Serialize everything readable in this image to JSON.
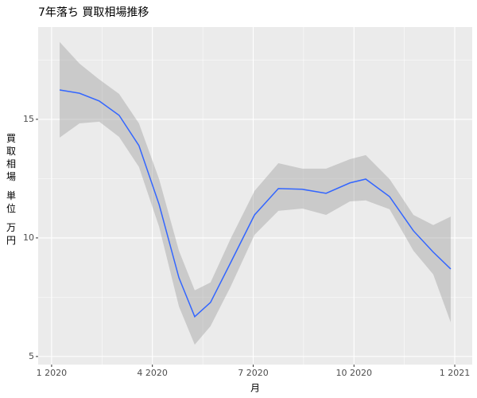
{
  "chart_data": {
    "type": "line",
    "title": "7年落ち 買取相場推移",
    "x_label": "月",
    "y_label": "買取相場 単位 万円",
    "x": [
      1.24,
      1.83,
      2.42,
      3.01,
      3.6,
      4.2,
      4.79,
      5.26,
      5.73,
      6.33,
      7.04,
      7.75,
      8.46,
      9.17,
      9.88,
      10.35,
      11.06,
      11.77,
      12.36,
      12.88
    ],
    "series": [
      {
        "color": "#3366ff",
        "values": [
          16.24,
          16.1,
          15.77,
          15.17,
          13.89,
          11.41,
          8.32,
          6.68,
          7.28,
          8.96,
          10.97,
          12.08,
          12.05,
          11.88,
          12.32,
          12.48,
          11.74,
          10.3,
          9.4,
          8.69
        ]
      }
    ],
    "ribbon": {
      "color": "#999999",
      "lower": [
        14.23,
        14.83,
        14.9,
        14.26,
        12.99,
        10.47,
        7.11,
        5.5,
        6.28,
        7.95,
        10.13,
        11.14,
        11.24,
        10.97,
        11.54,
        11.58,
        11.21,
        9.46,
        8.46,
        6.44
      ],
      "upper": [
        18.26,
        17.35,
        16.68,
        16.07,
        14.83,
        12.48,
        9.46,
        7.79,
        8.12,
        9.97,
        11.98,
        13.15,
        12.92,
        12.92,
        13.32,
        13.49,
        12.48,
        10.97,
        10.54,
        10.9
      ]
    },
    "xlim": [
      0.6,
      13.52
    ],
    "ylim": [
      4.66,
      18.89
    ],
    "xticks": [
      {
        "value": 1,
        "label": "1 2020"
      },
      {
        "value": 4,
        "label": "4 2020"
      },
      {
        "value": 7,
        "label": "7 2020"
      },
      {
        "value": 10,
        "label": "10 2020"
      },
      {
        "value": 13,
        "label": "1 2021"
      }
    ],
    "yticks": [
      5,
      10,
      15
    ],
    "xminor": [
      2.5,
      5.5,
      8.5,
      11.5
    ],
    "yminor": [
      7.5,
      12.5,
      17.5
    ],
    "grid": true
  }
}
